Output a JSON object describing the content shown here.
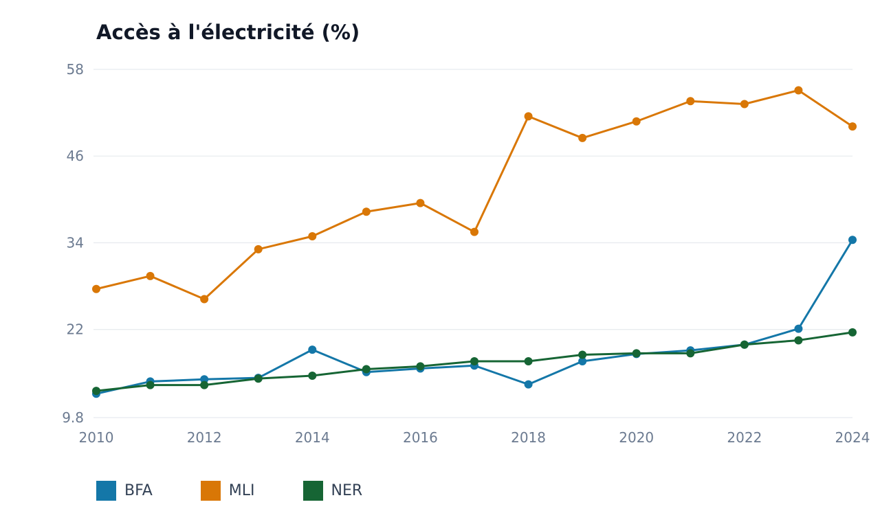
{
  "chart_data": {
    "type": "line",
    "title": "Accès à l'électricité (%)",
    "xlabel": "",
    "ylabel": "",
    "x": [
      2010,
      2011,
      2012,
      2013,
      2014,
      2015,
      2016,
      2017,
      2018,
      2019,
      2020,
      2021,
      2022,
      2023,
      2024
    ],
    "x_ticks": [
      "2010",
      "2012",
      "2014",
      "2016",
      "2018",
      "2020",
      "2022",
      "2024"
    ],
    "y_ticks": [
      "9.8",
      "22",
      "34",
      "46",
      "58"
    ],
    "ylim": [
      9.8,
      58
    ],
    "grid": "horizontal",
    "legend_position": "bottom-left",
    "series": [
      {
        "name": "BFA",
        "color": "#1477a8",
        "values": [
          13.1,
          14.8,
          15.1,
          15.3,
          19.2,
          16.1,
          16.6,
          17.0,
          14.4,
          17.6,
          18.6,
          19.1,
          19.9,
          22.1,
          34.4
        ]
      },
      {
        "name": "MLI",
        "color": "#d97706",
        "values": [
          27.6,
          29.4,
          26.2,
          33.1,
          34.9,
          38.3,
          39.5,
          35.5,
          51.5,
          48.5,
          50.8,
          53.6,
          53.2,
          55.1,
          50.1
        ]
      },
      {
        "name": "NER",
        "color": "#166534",
        "values": [
          13.5,
          14.3,
          14.3,
          15.2,
          15.6,
          16.5,
          16.9,
          17.6,
          17.6,
          18.5,
          18.7,
          18.7,
          19.9,
          20.5,
          21.6
        ]
      }
    ]
  }
}
